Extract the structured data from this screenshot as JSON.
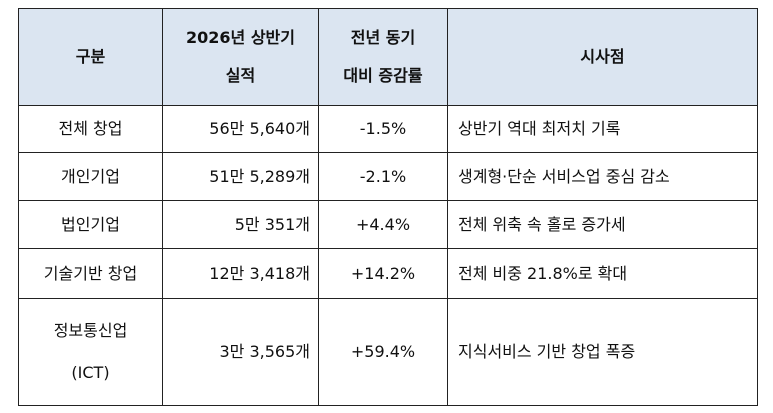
{
  "table": {
    "header": [
      "구분",
      "2026년 상반기\n실적",
      "전년 동기\n대비 증감률",
      "시사점"
    ],
    "rows": [
      [
        "전체 창업",
        "56만 5,640개",
        "-1.5%",
        "상반기 역대 최저치 기록"
      ],
      [
        "개인기업",
        "51만 5,289개",
        "-2.1%",
        "생계형·단순 서비스업 중심 감소"
      ],
      [
        "법인기업",
        "5만 351개",
        "+4.4%",
        "전체 위축 속 홀로 증가세"
      ],
      [
        "기술기반 창업",
        "12만 3,418개",
        "+14.2%",
        "전체 비중 21.8%로 확대"
      ],
      [
        "정보통신업\n(ICT)",
        "3만 3,565개",
        "+59.4%",
        "지식서비스 기반 창업 폭증"
      ]
    ]
  }
}
